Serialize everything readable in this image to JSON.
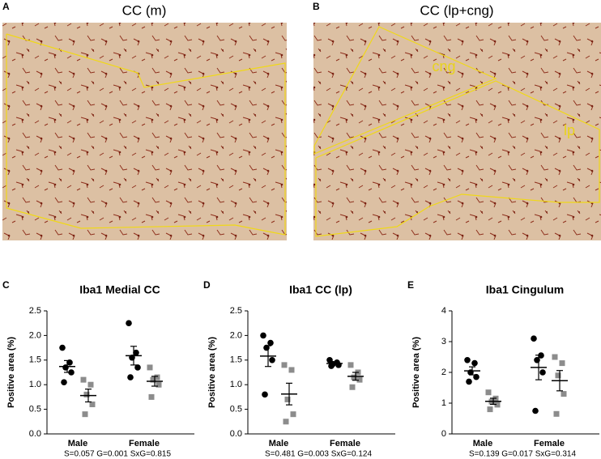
{
  "panels": [
    {
      "letter": "A",
      "title": "CC (m)"
    },
    {
      "letter": "B",
      "title": "CC (lp+cng)",
      "annotations": [
        "cng",
        "lp"
      ]
    }
  ],
  "chart_data": [
    {
      "type": "dotplot",
      "panel_label": "C",
      "title": "Iba1 Medial CC",
      "y_label": "Positive area (%)",
      "categories": [
        "Male",
        "Female"
      ],
      "ylim": [
        0,
        2.5
      ],
      "yticks": [
        {
          "value": 0,
          "label": "0.0"
        },
        0.5,
        {
          "value": 1,
          "label": "1.0"
        },
        1.5,
        {
          "value": 2,
          "label": "2.0"
        },
        2.5
      ],
      "series": [
        {
          "color": "#000000",
          "marker": "circle",
          "values": [
            [
              1.75,
              1.45,
              1.35,
              1.25,
              1.05
            ],
            [
              2.25,
              1.65,
              1.55,
              1.35,
              1.15
            ]
          ],
          "mean": [
            1.37,
            1.59
          ],
          "sem": [
            0.12,
            0.19
          ]
        },
        {
          "color": "#8c8c8c",
          "marker": "square",
          "values": [
            [
              1.1,
              1.0,
              0.8,
              0.6,
              0.4
            ],
            [
              1.35,
              1.15,
              1.1,
              1.0,
              0.75
            ]
          ],
          "mean": [
            0.78,
            1.07
          ],
          "sem": [
            0.13,
            0.1
          ]
        }
      ],
      "note": "S=0.057 G=0.001 SxG=0.815"
    },
    {
      "type": "dotplot",
      "panel_label": "D",
      "title": "Iba1 CC (lp)",
      "y_label": "Positive area (%)",
      "categories": [
        "Male",
        "Female"
      ],
      "ylim": [
        0,
        2.5
      ],
      "yticks": [
        {
          "value": 0,
          "label": "0.0"
        },
        0.5,
        {
          "value": 1,
          "label": "1.0"
        },
        1.5,
        {
          "value": 2,
          "label": "2.0"
        },
        2.5
      ],
      "series": [
        {
          "color": "#000000",
          "marker": "circle",
          "values": [
            [
              2.0,
              1.85,
              1.75,
              1.5,
              0.8
            ],
            [
              1.5,
              1.45,
              1.42,
              1.4,
              1.38
            ]
          ],
          "mean": [
            1.58,
            1.43
          ],
          "sem": [
            0.21,
            0.02
          ]
        },
        {
          "color": "#8c8c8c",
          "marker": "square",
          "values": [
            [
              1.4,
              1.3,
              0.7,
              0.4,
              0.25
            ],
            [
              1.4,
              1.25,
              1.15,
              1.1,
              0.95
            ]
          ],
          "mean": [
            0.81,
            1.17
          ],
          "sem": [
            0.22,
            0.08
          ]
        }
      ],
      "note": "S=0.481 G=0.003 SxG=0.124"
    },
    {
      "type": "dotplot",
      "panel_label": "E",
      "title": "Iba1 Cingulum",
      "y_label": "Positive area (%)",
      "categories": [
        "Male",
        "Female"
      ],
      "ylim": [
        0,
        4
      ],
      "yticks": [
        0,
        1,
        2,
        3,
        4
      ],
      "series": [
        {
          "color": "#000000",
          "marker": "circle",
          "values": [
            [
              2.4,
              2.3,
              2.0,
              1.85,
              1.7
            ],
            [
              3.1,
              2.55,
              2.4,
              2.0,
              0.75
            ]
          ],
          "mean": [
            2.05,
            2.16
          ],
          "sem": [
            0.13,
            0.4
          ]
        },
        {
          "color": "#8c8c8c",
          "marker": "square",
          "values": [
            [
              1.35,
              1.15,
              1.05,
              0.95,
              0.8
            ],
            [
              2.5,
              2.3,
              1.9,
              1.3,
              0.65
            ]
          ],
          "mean": [
            1.06,
            1.73
          ],
          "sem": [
            0.1,
            0.33
          ]
        }
      ],
      "note": "S=0.139 G=0.017 SxG=0.314"
    }
  ]
}
